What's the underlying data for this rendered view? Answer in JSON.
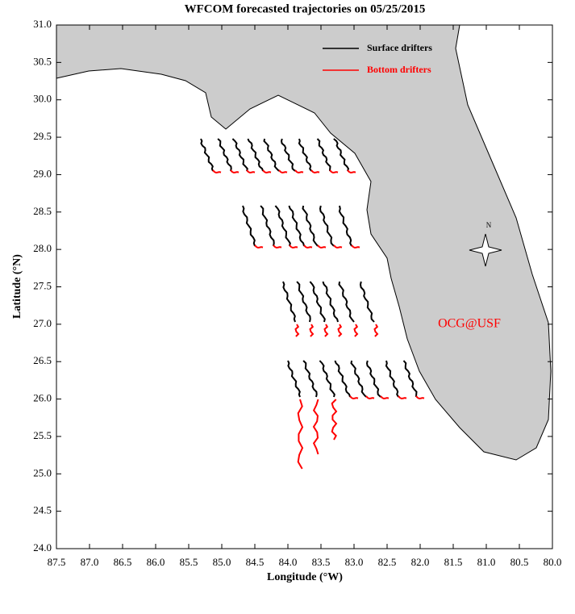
{
  "chart_data": {
    "type": "map",
    "title": "WFCOM forecasted trajectories on 05/25/2015",
    "x_label": "Longitude (°W)",
    "y_label": "Latitude (°N)",
    "xlim": [
      87.5,
      80.0
    ],
    "ylim": [
      24.0,
      31.0
    ],
    "xticks": [
      87.5,
      {
        "value": 87.0,
        "label": "87.0"
      },
      86.5,
      {
        "value": 86.0,
        "label": "86.0"
      },
      85.5,
      {
        "value": 85.0,
        "label": "85.0"
      },
      84.5,
      {
        "value": 84.0,
        "label": "84.0"
      },
      83.5,
      {
        "value": 83.0,
        "label": "83.0"
      },
      82.5,
      {
        "value": 82.0,
        "label": "82.0"
      },
      81.5,
      {
        "value": 81.0,
        "label": "81.0"
      },
      80.5,
      {
        "value": 80.0,
        "label": "80.0"
      }
    ],
    "yticks": [
      {
        "value": 24.0,
        "label": "24.0"
      },
      24.5,
      {
        "value": 25.0,
        "label": "25.0"
      },
      25.5,
      {
        "value": 26.0,
        "label": "26.0"
      },
      26.5,
      {
        "value": 27.0,
        "label": "27.0"
      },
      27.5,
      {
        "value": 28.0,
        "label": "28.0"
      },
      28.5,
      {
        "value": 29.0,
        "label": "29.0"
      },
      29.5,
      {
        "value": 30.0,
        "label": "30.0"
      },
      30.5,
      {
        "value": 31.0,
        "label": "31.0"
      }
    ],
    "series": [
      {
        "name": "Surface drifters",
        "color": "#000000"
      },
      {
        "name": "Bottom drifters",
        "color": "#ff0000"
      }
    ],
    "annotation": "OCG@USF",
    "annotation_color": "#ff0000",
    "compass_label": "N"
  }
}
